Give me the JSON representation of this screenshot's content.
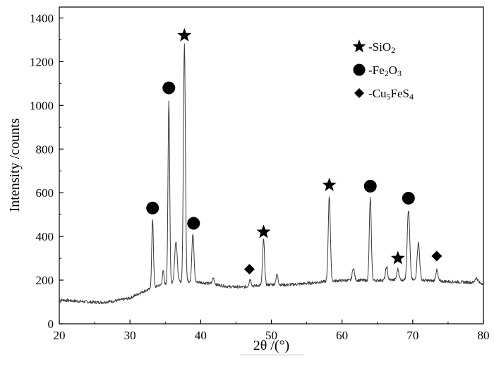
{
  "chart_data": {
    "type": "line",
    "title": "",
    "xlabel": "2θ /(°)",
    "ylabel": "Intensity /counts",
    "xlim": [
      20,
      80
    ],
    "ylim": [
      0,
      1450
    ],
    "xticks": [
      20,
      30,
      40,
      50,
      60,
      70,
      80
    ],
    "yticks": [
      0,
      200,
      400,
      600,
      800,
      1000,
      1200,
      1400
    ],
    "grid": false,
    "legend_position": "top-right",
    "line_color": "#3a3a3a",
    "legend": [
      {
        "marker": "star",
        "label": "-SiO2",
        "parts": [
          {
            "t": "-SiO"
          },
          {
            "t": "2",
            "sub": true
          }
        ]
      },
      {
        "marker": "circle",
        "label": "-Fe2O3",
        "parts": [
          {
            "t": "-Fe"
          },
          {
            "t": "2",
            "sub": true
          },
          {
            "t": "O"
          },
          {
            "t": "3",
            "sub": true
          }
        ]
      },
      {
        "marker": "diamond",
        "label": "-Cu5FeS4",
        "parts": [
          {
            "t": "-Cu"
          },
          {
            "t": "5",
            "sub": true
          },
          {
            "t": "FeS"
          },
          {
            "t": "4",
            "sub": true
          }
        ]
      }
    ],
    "series": [
      {
        "baseline": [
          [
            20,
            110
          ],
          [
            22,
            105
          ],
          [
            24,
            100
          ],
          [
            26,
            98
          ],
          [
            28,
            105
          ],
          [
            30,
            118
          ],
          [
            32,
            150
          ],
          [
            33,
            160
          ],
          [
            34,
            175
          ],
          [
            36,
            185
          ],
          [
            38,
            195
          ],
          [
            40,
            190
          ],
          [
            42,
            180
          ],
          [
            44,
            170
          ],
          [
            46,
            168
          ],
          [
            48,
            175
          ],
          [
            50,
            180
          ],
          [
            52,
            178
          ],
          [
            54,
            182
          ],
          [
            56,
            188
          ],
          [
            58,
            195
          ],
          [
            60,
            198
          ],
          [
            62,
            200
          ],
          [
            64,
            198
          ],
          [
            66,
            200
          ],
          [
            68,
            202
          ],
          [
            70,
            200
          ],
          [
            72,
            198
          ],
          [
            74,
            195
          ],
          [
            76,
            192
          ],
          [
            78,
            190
          ],
          [
            80,
            185
          ]
        ],
        "peaks": [
          {
            "x": 33.2,
            "y": 480,
            "w": 0.12
          },
          {
            "x": 34.7,
            "y": 240,
            "w": 0.12
          },
          {
            "x": 35.5,
            "y": 1020,
            "w": 0.12
          },
          {
            "x": 36.5,
            "y": 380,
            "w": 0.18
          },
          {
            "x": 37.7,
            "y": 1280,
            "w": 0.14
          },
          {
            "x": 38.9,
            "y": 410,
            "w": 0.15
          },
          {
            "x": 41.8,
            "y": 210,
            "w": 0.15
          },
          {
            "x": 47.0,
            "y": 205,
            "w": 0.15
          },
          {
            "x": 48.9,
            "y": 385,
            "w": 0.14
          },
          {
            "x": 50.8,
            "y": 225,
            "w": 0.15
          },
          {
            "x": 58.2,
            "y": 585,
            "w": 0.15
          },
          {
            "x": 61.6,
            "y": 255,
            "w": 0.15
          },
          {
            "x": 64.0,
            "y": 575,
            "w": 0.14
          },
          {
            "x": 66.3,
            "y": 260,
            "w": 0.15
          },
          {
            "x": 67.9,
            "y": 250,
            "w": 0.15
          },
          {
            "x": 69.4,
            "y": 520,
            "w": 0.18
          },
          {
            "x": 70.8,
            "y": 370,
            "w": 0.18
          },
          {
            "x": 73.4,
            "y": 245,
            "w": 0.15
          },
          {
            "x": 79.0,
            "y": 210,
            "w": 0.2
          }
        ]
      }
    ],
    "annotations": [
      {
        "marker": "circle",
        "x": 33.2,
        "y": 530
      },
      {
        "marker": "circle",
        "x": 35.5,
        "y": 1080
      },
      {
        "marker": "star",
        "x": 37.7,
        "y": 1320
      },
      {
        "marker": "circle",
        "x": 39.0,
        "y": 460
      },
      {
        "marker": "diamond",
        "x": 46.9,
        "y": 250
      },
      {
        "marker": "star",
        "x": 48.9,
        "y": 420
      },
      {
        "marker": "star",
        "x": 58.2,
        "y": 635
      },
      {
        "marker": "circle",
        "x": 64.0,
        "y": 630
      },
      {
        "marker": "star",
        "x": 67.9,
        "y": 300
      },
      {
        "marker": "circle",
        "x": 69.4,
        "y": 575
      },
      {
        "marker": "diamond",
        "x": 73.4,
        "y": 310
      }
    ]
  }
}
